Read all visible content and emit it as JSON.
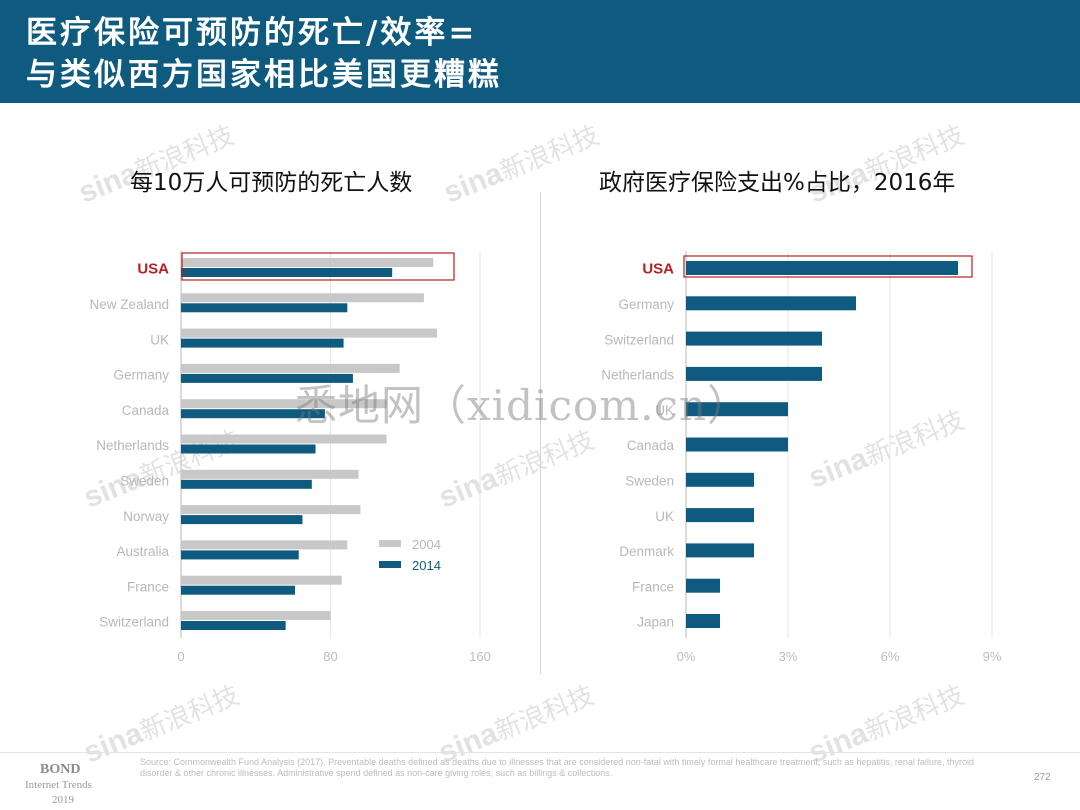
{
  "title": {
    "line1": "医疗保险可预防的死亡/效率=",
    "line2": "与类似西方国家相比美国更糟糕"
  },
  "watermark": {
    "text": "悉地网（xidicom.cn）",
    "sina_latin": "sina",
    "sina_cn": "新浪科技"
  },
  "chart_data": [
    {
      "type": "bar",
      "orientation": "horizontal",
      "title": "每10万人可预防的死亡人数",
      "categories": [
        "USA",
        "New Zealand",
        "UK",
        "Germany",
        "Canada",
        "Netherlands",
        "Sweden",
        "Norway",
        "Australia",
        "France",
        "Switzerland"
      ],
      "series": [
        {
          "name": "2004",
          "color": "#c8c8c8",
          "values": [
            135,
            130,
            137,
            117,
            110,
            110,
            95,
            96,
            89,
            86,
            80
          ]
        },
        {
          "name": "2014",
          "color": "#0f5b80",
          "values": [
            113,
            89,
            87,
            92,
            77,
            72,
            70,
            65,
            63,
            61,
            56
          ]
        }
      ],
      "xlim": [
        0,
        160
      ],
      "xticks": [
        "0",
        "80",
        "160"
      ],
      "highlight": "USA",
      "highlight_color": "#b22222",
      "legend_position": "bottom-right"
    },
    {
      "type": "bar",
      "orientation": "horizontal",
      "title": "政府医疗保险支出%占比，2016年",
      "categories": [
        "USA",
        "Germany",
        "Switzerland",
        "Netherlands",
        "UK",
        "Canada",
        "Sweden",
        "UK",
        "Denmark",
        "France",
        "Japan"
      ],
      "values": [
        8,
        5,
        4,
        4,
        3,
        3,
        2,
        2,
        2,
        1,
        1
      ],
      "color": "#0f5b80",
      "xlim": [
        0,
        9
      ],
      "xticks": [
        "0%",
        "3%",
        "6%",
        "9%"
      ],
      "highlight": "USA",
      "highlight_color": "#b22222"
    }
  ],
  "footer": {
    "source": "Source: Commonwealth Fund Analysis (2017). Preventable deaths defined as deaths due to illnesses that are considered non-fatal with timely formal healthcare treatment, such as hepatitis, renal failure, thyroid disorder & other chronic illnesses. Administrative spend defined as non-care giving roles, such as billings & collections.",
    "page": "272",
    "brand": "BOND",
    "brand_sub": "Internet Trends",
    "brand_year": "2019"
  }
}
